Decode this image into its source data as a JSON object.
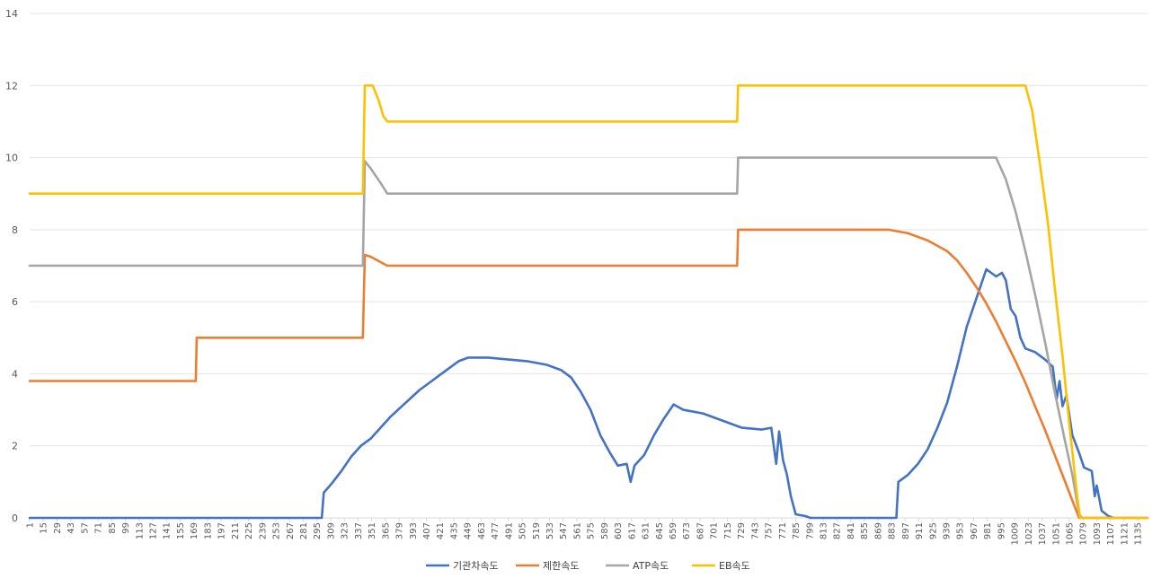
{
  "chart_data": {
    "type": "line",
    "title": "",
    "xlabel": "",
    "ylabel": "",
    "xlim": [
      1,
      1145
    ],
    "ylim": [
      0,
      14
    ],
    "y_ticks": [
      0,
      2,
      4,
      6,
      8,
      10,
      12,
      14
    ],
    "x_tick_labels": [
      1,
      15,
      29,
      43,
      57,
      71,
      85,
      99,
      113,
      127,
      141,
      155,
      169,
      183,
      197,
      211,
      225,
      239,
      253,
      267,
      281,
      295,
      309,
      323,
      337,
      351,
      365,
      379,
      393,
      407,
      421,
      435,
      449,
      463,
      477,
      491,
      505,
      519,
      533,
      547,
      561,
      575,
      589,
      603,
      617,
      631,
      645,
      659,
      673,
      687,
      701,
      715,
      729,
      743,
      757,
      771,
      785,
      799,
      813,
      827,
      841,
      855,
      869,
      883,
      897,
      911,
      925,
      939,
      953,
      967,
      981,
      995,
      1009,
      1023,
      1037,
      1051,
      1065,
      1079,
      1093,
      1107,
      1121,
      1135
    ],
    "grid": "horizontal",
    "legend_position": "bottom",
    "series": [
      {
        "name": "기관차속도",
        "color": "#4472C4",
        "points": [
          [
            1,
            0
          ],
          [
            300,
            0
          ],
          [
            302,
            0.7
          ],
          [
            310,
            0.95
          ],
          [
            320,
            1.3
          ],
          [
            330,
            1.7
          ],
          [
            340,
            2.0
          ],
          [
            350,
            2.2
          ],
          [
            360,
            2.5
          ],
          [
            370,
            2.8
          ],
          [
            380,
            3.05
          ],
          [
            390,
            3.3
          ],
          [
            400,
            3.55
          ],
          [
            410,
            3.75
          ],
          [
            420,
            3.95
          ],
          [
            430,
            4.15
          ],
          [
            440,
            4.35
          ],
          [
            450,
            4.45
          ],
          [
            470,
            4.45
          ],
          [
            490,
            4.4
          ],
          [
            510,
            4.35
          ],
          [
            530,
            4.25
          ],
          [
            545,
            4.1
          ],
          [
            555,
            3.9
          ],
          [
            565,
            3.5
          ],
          [
            575,
            3.0
          ],
          [
            585,
            2.3
          ],
          [
            595,
            1.8
          ],
          [
            603,
            1.45
          ],
          [
            612,
            1.5
          ],
          [
            616,
            1.0
          ],
          [
            620,
            1.45
          ],
          [
            630,
            1.75
          ],
          [
            640,
            2.3
          ],
          [
            650,
            2.75
          ],
          [
            660,
            3.15
          ],
          [
            670,
            3.0
          ],
          [
            690,
            2.9
          ],
          [
            710,
            2.7
          ],
          [
            730,
            2.5
          ],
          [
            750,
            2.45
          ],
          [
            760,
            2.5
          ],
          [
            765,
            1.5
          ],
          [
            768,
            2.4
          ],
          [
            772,
            1.6
          ],
          [
            776,
            1.2
          ],
          [
            780,
            0.6
          ],
          [
            785,
            0.1
          ],
          [
            795,
            0.05
          ],
          [
            800,
            0
          ],
          [
            888,
            0
          ],
          [
            890,
            1.0
          ],
          [
            900,
            1.2
          ],
          [
            910,
            1.5
          ],
          [
            920,
            1.9
          ],
          [
            930,
            2.5
          ],
          [
            940,
            3.2
          ],
          [
            950,
            4.2
          ],
          [
            960,
            5.3
          ],
          [
            970,
            6.1
          ],
          [
            980,
            6.9
          ],
          [
            990,
            6.7
          ],
          [
            996,
            6.8
          ],
          [
            1000,
            6.6
          ],
          [
            1005,
            5.8
          ],
          [
            1010,
            5.6
          ],
          [
            1015,
            5.0
          ],
          [
            1020,
            4.7
          ],
          [
            1030,
            4.6
          ],
          [
            1040,
            4.4
          ],
          [
            1048,
            4.2
          ],
          [
            1052,
            3.3
          ],
          [
            1055,
            3.8
          ],
          [
            1058,
            3.1
          ],
          [
            1062,
            3.4
          ],
          [
            1068,
            2.3
          ],
          [
            1075,
            1.8
          ],
          [
            1080,
            1.4
          ],
          [
            1088,
            1.3
          ],
          [
            1091,
            0.6
          ],
          [
            1093,
            0.9
          ],
          [
            1098,
            0.2
          ],
          [
            1105,
            0.05
          ],
          [
            1110,
            0
          ]
        ]
      },
      {
        "name": "제한속도",
        "color": "#ED7D31",
        "points": [
          [
            1,
            3.8
          ],
          [
            171,
            3.8
          ],
          [
            172,
            5.0
          ],
          [
            342,
            5.0
          ],
          [
            344,
            7.3
          ],
          [
            350,
            7.25
          ],
          [
            360,
            7.1
          ],
          [
            367,
            7.0
          ],
          [
            725,
            7.0
          ],
          [
            726,
            8.0
          ],
          [
            880,
            8.0
          ],
          [
            900,
            7.9
          ],
          [
            920,
            7.7
          ],
          [
            940,
            7.4
          ],
          [
            950,
            7.15
          ],
          [
            960,
            6.8
          ],
          [
            970,
            6.4
          ],
          [
            980,
            5.95
          ],
          [
            990,
            5.45
          ],
          [
            1000,
            4.9
          ],
          [
            1010,
            4.35
          ],
          [
            1020,
            3.75
          ],
          [
            1030,
            3.1
          ],
          [
            1040,
            2.45
          ],
          [
            1050,
            1.75
          ],
          [
            1060,
            1.05
          ],
          [
            1070,
            0.35
          ],
          [
            1075,
            0
          ],
          [
            1145,
            0
          ]
        ]
      },
      {
        "name": "ATP속도",
        "color": "#A5A5A5",
        "points": [
          [
            1,
            7.0
          ],
          [
            342,
            7.0
          ],
          [
            344,
            9.9
          ],
          [
            350,
            9.7
          ],
          [
            360,
            9.3
          ],
          [
            367,
            9.0
          ],
          [
            725,
            9.0
          ],
          [
            726,
            10.0
          ],
          [
            990,
            10.0
          ],
          [
            1000,
            9.4
          ],
          [
            1010,
            8.5
          ],
          [
            1020,
            7.4
          ],
          [
            1030,
            6.2
          ],
          [
            1040,
            4.9
          ],
          [
            1050,
            3.5
          ],
          [
            1060,
            2.2
          ],
          [
            1068,
            1.2
          ],
          [
            1075,
            0.1
          ],
          [
            1078,
            0
          ],
          [
            1145,
            0
          ]
        ]
      },
      {
        "name": "EB속도",
        "color": "#FFC000",
        "points": [
          [
            1,
            9.0
          ],
          [
            342,
            9.0
          ],
          [
            344,
            12.0
          ],
          [
            352,
            12.0
          ],
          [
            358,
            11.6
          ],
          [
            363,
            11.15
          ],
          [
            367,
            11.0
          ],
          [
            725,
            11.0
          ],
          [
            726,
            12.0
          ],
          [
            1020,
            12.0
          ],
          [
            1027,
            11.3
          ],
          [
            1035,
            9.8
          ],
          [
            1043,
            8.2
          ],
          [
            1050,
            6.4
          ],
          [
            1058,
            4.5
          ],
          [
            1065,
            2.6
          ],
          [
            1073,
            0.6
          ],
          [
            1076,
            0
          ],
          [
            1145,
            0
          ]
        ]
      }
    ]
  }
}
